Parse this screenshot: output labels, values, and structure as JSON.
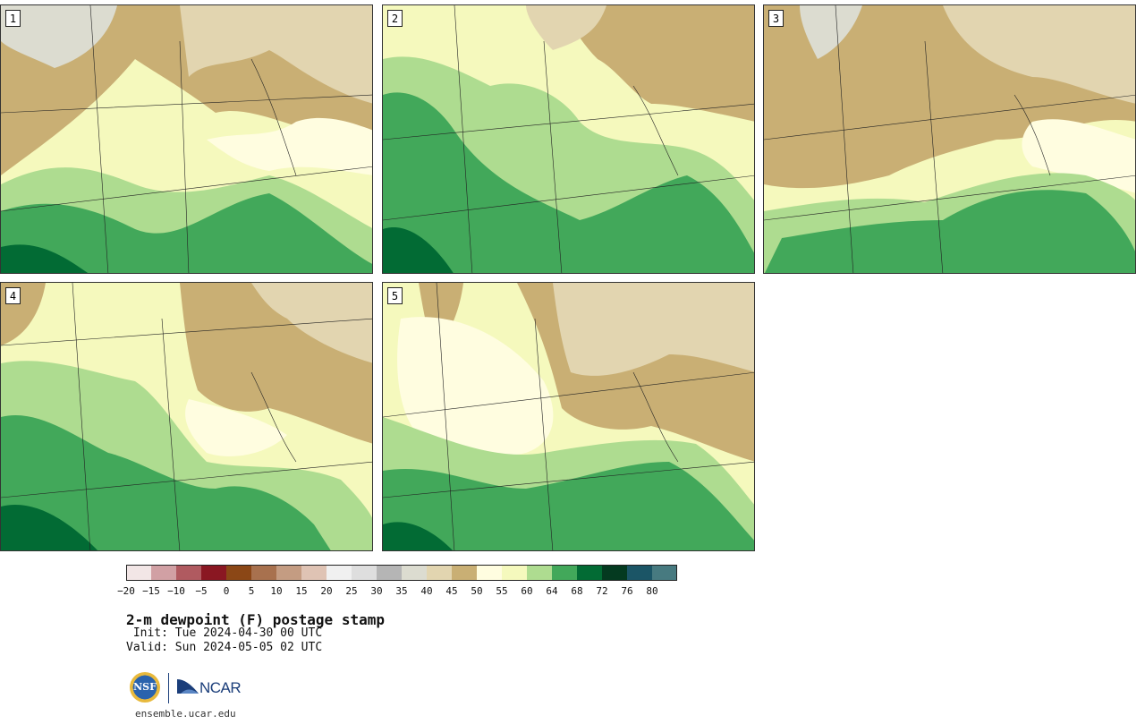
{
  "title": "2-m dewpoint (F) postage stamp",
  "init": " Init: Tue 2024-04-30 00 UTC",
  "valid": "Valid: Sun 2024-05-05 02 UTC",
  "website": "ensemble.ucar.edu",
  "logos": {
    "nsf": "NSF",
    "ncar": "NCAR"
  },
  "panels": [
    {
      "label": "1"
    },
    {
      "label": "2"
    },
    {
      "label": "3"
    },
    {
      "label": "4"
    },
    {
      "label": "5"
    }
  ],
  "colorbar": {
    "ticks": [
      "−20",
      "−15",
      "−10",
      "−5",
      "0",
      "5",
      "10",
      "15",
      "20",
      "25",
      "30",
      "35",
      "40",
      "45",
      "50",
      "55",
      "60",
      "64",
      "68",
      "72",
      "76",
      "80"
    ],
    "colors": [
      "#f2e6e6",
      "#d1a0a4",
      "#b05a60",
      "#8a1722",
      "#8b4716",
      "#a8714e",
      "#c49c82",
      "#dfc3b4",
      "#f0f0f0",
      "#dedede",
      "#b5b5b5",
      "#dcdcd0",
      "#e2d5b0",
      "#c9af74",
      "#fffde0",
      "#f5f9bd",
      "#aedc90",
      "#42a85a",
      "#026b34",
      "#043a20",
      "#1b5566",
      "#477a80"
    ]
  }
}
